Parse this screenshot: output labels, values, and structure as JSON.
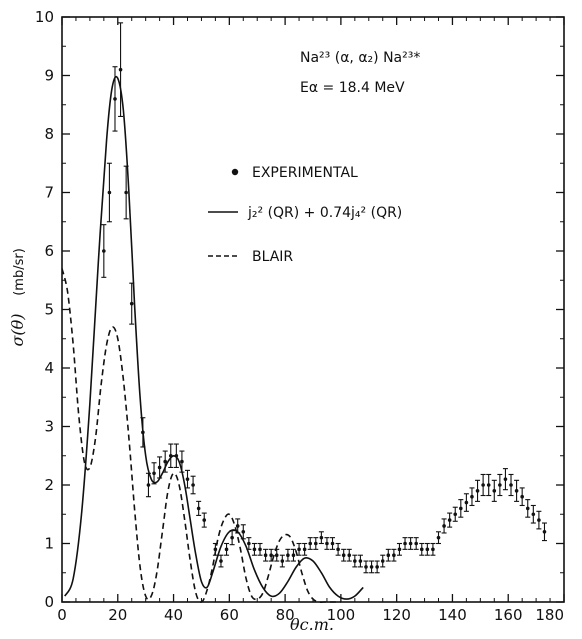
{
  "chart_data": {
    "type": "scatter",
    "annotation": {
      "reaction": "Na²³ (α, α₂) Na²³*",
      "energy": "Eα = 18.4 MeV"
    },
    "xlabel": "θc.m.",
    "ylabel": "σ(θ)",
    "yunit": "(mb/sr)",
    "xlim": [
      0,
      180
    ],
    "ylim": [
      0,
      10
    ],
    "xticks": [
      0,
      20,
      40,
      60,
      80,
      100,
      120,
      140,
      160,
      180
    ],
    "yticks": [
      0,
      1,
      2,
      3,
      4,
      5,
      6,
      7,
      8,
      9,
      10
    ],
    "legend": {
      "placement": "center-left",
      "entries": [
        {
          "kind": "points",
          "label": "EXPERIMENTAL"
        },
        {
          "kind": "solid",
          "label": "j₂² (QR) + 0.74j₄² (QR)"
        },
        {
          "kind": "dashed",
          "label": "BLAIR"
        }
      ]
    },
    "series": [
      {
        "name": "EXPERIMENTAL",
        "kind": "points",
        "points": [
          {
            "x": 15,
            "y": 6.0,
            "e": 0.45
          },
          {
            "x": 17,
            "y": 7.0,
            "e": 0.5
          },
          {
            "x": 19,
            "y": 8.6,
            "e": 0.55
          },
          {
            "x": 21,
            "y": 9.1,
            "e": 0.8
          },
          {
            "x": 23,
            "y": 7.0,
            "e": 0.45
          },
          {
            "x": 25,
            "y": 5.1,
            "e": 0.35
          },
          {
            "x": 29,
            "y": 2.9,
            "e": 0.25
          },
          {
            "x": 31,
            "y": 2.0,
            "e": 0.2
          },
          {
            "x": 33,
            "y": 2.2,
            "e": 0.18
          },
          {
            "x": 35,
            "y": 2.3,
            "e": 0.18
          },
          {
            "x": 37,
            "y": 2.4,
            "e": 0.18
          },
          {
            "x": 39,
            "y": 2.5,
            "e": 0.2
          },
          {
            "x": 41,
            "y": 2.5,
            "e": 0.2
          },
          {
            "x": 43,
            "y": 2.4,
            "e": 0.18
          },
          {
            "x": 45,
            "y": 2.1,
            "e": 0.15
          },
          {
            "x": 47,
            "y": 2.0,
            "e": 0.15
          },
          {
            "x": 49,
            "y": 1.6,
            "e": 0.12
          },
          {
            "x": 51,
            "y": 1.4,
            "e": 0.12
          },
          {
            "x": 55,
            "y": 0.9,
            "e": 0.1
          },
          {
            "x": 57,
            "y": 0.7,
            "e": 0.1
          },
          {
            "x": 59,
            "y": 0.9,
            "e": 0.1
          },
          {
            "x": 61,
            "y": 1.1,
            "e": 0.12
          },
          {
            "x": 63,
            "y": 1.3,
            "e": 0.12
          },
          {
            "x": 65,
            "y": 1.2,
            "e": 0.12
          },
          {
            "x": 67,
            "y": 1.0,
            "e": 0.1
          },
          {
            "x": 69,
            "y": 0.9,
            "e": 0.1
          },
          {
            "x": 71,
            "y": 0.9,
            "e": 0.1
          },
          {
            "x": 73,
            "y": 0.8,
            "e": 0.1
          },
          {
            "x": 75,
            "y": 0.8,
            "e": 0.1
          },
          {
            "x": 77,
            "y": 0.8,
            "e": 0.1
          },
          {
            "x": 79,
            "y": 0.7,
            "e": 0.1
          },
          {
            "x": 81,
            "y": 0.8,
            "e": 0.1
          },
          {
            "x": 83,
            "y": 0.8,
            "e": 0.1
          },
          {
            "x": 85,
            "y": 0.9,
            "e": 0.1
          },
          {
            "x": 87,
            "y": 0.9,
            "e": 0.1
          },
          {
            "x": 89,
            "y": 1.0,
            "e": 0.1
          },
          {
            "x": 91,
            "y": 1.0,
            "e": 0.1
          },
          {
            "x": 93,
            "y": 1.1,
            "e": 0.1
          },
          {
            "x": 95,
            "y": 1.0,
            "e": 0.1
          },
          {
            "x": 97,
            "y": 1.0,
            "e": 0.1
          },
          {
            "x": 99,
            "y": 0.9,
            "e": 0.1
          },
          {
            "x": 101,
            "y": 0.8,
            "e": 0.1
          },
          {
            "x": 103,
            "y": 0.8,
            "e": 0.1
          },
          {
            "x": 105,
            "y": 0.7,
            "e": 0.1
          },
          {
            "x": 107,
            "y": 0.7,
            "e": 0.1
          },
          {
            "x": 109,
            "y": 0.6,
            "e": 0.1
          },
          {
            "x": 111,
            "y": 0.6,
            "e": 0.1
          },
          {
            "x": 113,
            "y": 0.6,
            "e": 0.1
          },
          {
            "x": 115,
            "y": 0.7,
            "e": 0.1
          },
          {
            "x": 117,
            "y": 0.8,
            "e": 0.1
          },
          {
            "x": 119,
            "y": 0.8,
            "e": 0.1
          },
          {
            "x": 121,
            "y": 0.9,
            "e": 0.1
          },
          {
            "x": 123,
            "y": 1.0,
            "e": 0.1
          },
          {
            "x": 125,
            "y": 1.0,
            "e": 0.1
          },
          {
            "x": 127,
            "y": 1.0,
            "e": 0.1
          },
          {
            "x": 129,
            "y": 0.9,
            "e": 0.1
          },
          {
            "x": 131,
            "y": 0.9,
            "e": 0.1
          },
          {
            "x": 133,
            "y": 0.9,
            "e": 0.1
          },
          {
            "x": 135,
            "y": 1.1,
            "e": 0.1
          },
          {
            "x": 137,
            "y": 1.3,
            "e": 0.12
          },
          {
            "x": 139,
            "y": 1.4,
            "e": 0.12
          },
          {
            "x": 141,
            "y": 1.5,
            "e": 0.12
          },
          {
            "x": 143,
            "y": 1.6,
            "e": 0.15
          },
          {
            "x": 145,
            "y": 1.7,
            "e": 0.15
          },
          {
            "x": 147,
            "y": 1.8,
            "e": 0.15
          },
          {
            "x": 149,
            "y": 1.9,
            "e": 0.18
          },
          {
            "x": 151,
            "y": 2.0,
            "e": 0.18
          },
          {
            "x": 153,
            "y": 2.0,
            "e": 0.18
          },
          {
            "x": 155,
            "y": 1.9,
            "e": 0.18
          },
          {
            "x": 157,
            "y": 2.0,
            "e": 0.18
          },
          {
            "x": 159,
            "y": 2.1,
            "e": 0.18
          },
          {
            "x": 161,
            "y": 2.0,
            "e": 0.18
          },
          {
            "x": 163,
            "y": 1.9,
            "e": 0.18
          },
          {
            "x": 165,
            "y": 1.8,
            "e": 0.15
          },
          {
            "x": 167,
            "y": 1.6,
            "e": 0.15
          },
          {
            "x": 169,
            "y": 1.5,
            "e": 0.15
          },
          {
            "x": 171,
            "y": 1.4,
            "e": 0.15
          },
          {
            "x": 173,
            "y": 1.2,
            "e": 0.15
          }
        ]
      },
      {
        "name": "j₂² (QR) + 0.74j₄² (QR)",
        "kind": "solid",
        "x": [
          1,
          4,
          7,
          10,
          13,
          16,
          18,
          20,
          22,
          24,
          26,
          28,
          30,
          32,
          34,
          36,
          38,
          40,
          42,
          44,
          46,
          48,
          50,
          52,
          54,
          57,
          60,
          63,
          66,
          69,
          72,
          75,
          78,
          81,
          84,
          87,
          90,
          93,
          96,
          99,
          102,
          105,
          108
        ],
        "y": [
          0.1,
          0.4,
          1.5,
          3.4,
          5.8,
          7.9,
          8.8,
          8.95,
          8.4,
          7.0,
          5.1,
          3.5,
          2.5,
          2.1,
          2.05,
          2.2,
          2.4,
          2.5,
          2.4,
          2.0,
          1.4,
          0.8,
          0.35,
          0.25,
          0.5,
          0.95,
          1.2,
          1.2,
          0.95,
          0.55,
          0.25,
          0.1,
          0.15,
          0.35,
          0.6,
          0.75,
          0.7,
          0.5,
          0.25,
          0.1,
          0.05,
          0.1,
          0.25
        ]
      },
      {
        "name": "BLAIR",
        "kind": "dashed",
        "x": [
          0,
          2,
          4,
          6,
          8,
          10,
          12,
          14,
          16,
          18,
          20,
          22,
          24,
          26,
          28,
          30,
          32,
          34,
          36,
          38,
          40,
          42,
          44,
          46,
          48,
          50,
          52,
          54,
          56,
          58,
          60,
          62,
          64,
          66,
          68,
          70,
          72,
          74,
          76,
          78,
          80,
          82,
          84,
          86,
          88,
          90,
          92,
          94,
          96,
          98,
          100
        ],
        "y": [
          5.7,
          5.3,
          4.4,
          3.2,
          2.4,
          2.3,
          2.8,
          3.7,
          4.4,
          4.7,
          4.5,
          3.8,
          2.8,
          1.6,
          0.6,
          0.1,
          0.1,
          0.5,
          1.2,
          1.9,
          2.2,
          2.0,
          1.4,
          0.7,
          0.15,
          0.0,
          0.2,
          0.6,
          1.1,
          1.4,
          1.5,
          1.3,
          0.9,
          0.4,
          0.1,
          0.05,
          0.15,
          0.45,
          0.8,
          1.05,
          1.15,
          1.1,
          0.85,
          0.5,
          0.2,
          0.05,
          0.0,
          0.0,
          0.0,
          0.0,
          0.0
        ]
      }
    ]
  }
}
